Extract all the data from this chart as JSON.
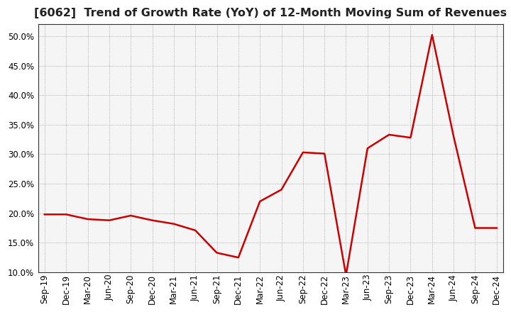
{
  "title": "[6062]  Trend of Growth Rate (YoY) of 12-Month Moving Sum of Revenues",
  "x_labels": [
    "Sep-19",
    "Dec-19",
    "Mar-20",
    "Jun-20",
    "Sep-20",
    "Dec-20",
    "Mar-21",
    "Jun-21",
    "Sep-21",
    "Dec-21",
    "Mar-22",
    "Jun-22",
    "Sep-22",
    "Dec-22",
    "Mar-23",
    "Jun-23",
    "Sep-23",
    "Dec-23",
    "Mar-24",
    "Jun-24",
    "Sep-24",
    "Dec-24"
  ],
  "y_values": [
    19.8,
    19.8,
    19.0,
    18.8,
    19.6,
    18.8,
    18.2,
    17.1,
    13.3,
    12.5,
    22.0,
    24.0,
    30.3,
    30.1,
    9.5,
    31.0,
    33.3,
    32.8,
    50.2,
    33.0,
    17.5,
    17.5
  ],
  "line_color": "#cc0000",
  "line_width": 1.8,
  "ylim": [
    10.0,
    52.0
  ],
  "yticks": [
    10.0,
    15.0,
    20.0,
    25.0,
    30.0,
    35.0,
    40.0,
    45.0,
    50.0
  ],
  "background_color": "#ffffff",
  "plot_bg_color": "#f5f5f5",
  "grid_color": "#999999",
  "border_color": "#333333",
  "title_fontsize": 11.5,
  "tick_fontsize": 8.5
}
